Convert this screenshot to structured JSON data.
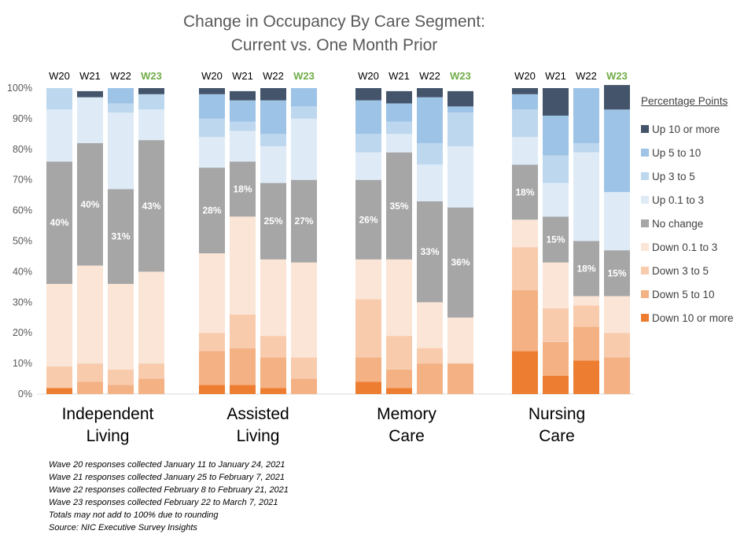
{
  "title": {
    "line1": "Change in Occupancy By Care Segment:",
    "line2": "Current vs. One Month Prior"
  },
  "legend_title": "Percentage Points",
  "notes": [
    "Wave 20 responses collected January 11 to January 24, 2021",
    "Wave 21 responses collected January 25 to February 7, 2021",
    "Wave 22 responses collected February 8 to February 21, 2021",
    "Wave 23 responses collected February 22 to March 7, 2021",
    "Totals may not add to 100% due to rounding",
    "Source: NIC Executive Survey Insights"
  ],
  "colors": {
    "highlight_wave": "#70AD47",
    "segments": [
      "#ED7D31",
      "#F4B183",
      "#F8CBAD",
      "#FBE5D6",
      "#A6A6A6",
      "#DEEBF7",
      "#BDD7EE",
      "#9DC3E6",
      "#44546A"
    ]
  },
  "chart_data": {
    "type": "bar",
    "stacked": true,
    "ylim": [
      0,
      100
    ],
    "yticks": [
      "0%",
      "10%",
      "20%",
      "30%",
      "40%",
      "50%",
      "60%",
      "70%",
      "80%",
      "90%",
      "100%"
    ],
    "waves": [
      "W20",
      "W21",
      "W22",
      "W23"
    ],
    "highlight_wave": "W23",
    "segment_names": [
      "Down 10 or more",
      "Down 5 to 10",
      "Down 3 to 5",
      "Down 0.1 to 3",
      "No change",
      "Up 0.1 to 3",
      "Up 3 to 5",
      "Up 5 to 10",
      "Up 10 or more"
    ],
    "groups": [
      {
        "name": "Independent Living",
        "name_lines": [
          "Independent",
          "Living"
        ],
        "bars": [
          {
            "wave": "W20",
            "values": [
              2,
              0,
              7,
              27,
              40,
              17,
              7,
              0,
              0
            ],
            "label": "40%"
          },
          {
            "wave": "W21",
            "values": [
              0,
              4,
              6,
              32,
              40,
              15,
              0,
              0,
              2
            ],
            "label": "40%"
          },
          {
            "wave": "W22",
            "values": [
              0,
              3,
              5,
              28,
              31,
              25,
              3,
              5,
              0
            ],
            "label": "31%"
          },
          {
            "wave": "W23",
            "values": [
              0,
              5,
              5,
              30,
              43,
              10,
              5,
              0,
              2
            ],
            "label": "43%"
          }
        ]
      },
      {
        "name": "Assisted Living",
        "name_lines": [
          "Assisted",
          "Living"
        ],
        "bars": [
          {
            "wave": "W20",
            "values": [
              3,
              11,
              6,
              26,
              28,
              10,
              6,
              8,
              2
            ],
            "label": "28%"
          },
          {
            "wave": "W21",
            "values": [
              3,
              12,
              11,
              32,
              18,
              10,
              3,
              7,
              3
            ],
            "label": "18%"
          },
          {
            "wave": "W22",
            "values": [
              2,
              10,
              7,
              25,
              25,
              12,
              4,
              11,
              4
            ],
            "label": "25%"
          },
          {
            "wave": "W23",
            "values": [
              0,
              5,
              7,
              31,
              27,
              20,
              4,
              6,
              0
            ],
            "label": "27%"
          }
        ]
      },
      {
        "name": "Memory Care",
        "name_lines": [
          "Memory",
          "Care"
        ],
        "bars": [
          {
            "wave": "W20",
            "values": [
              4,
              8,
              19,
              13,
              26,
              9,
              6,
              11,
              4
            ],
            "label": "26%"
          },
          {
            "wave": "W21",
            "values": [
              2,
              6,
              11,
              25,
              35,
              6,
              4,
              6,
              4
            ],
            "label": "35%"
          },
          {
            "wave": "W22",
            "values": [
              0,
              10,
              5,
              15,
              33,
              12,
              7,
              15,
              3
            ],
            "label": "33%"
          },
          {
            "wave": "W23",
            "values": [
              0,
              10,
              0,
              15,
              36,
              20,
              11,
              2,
              5
            ],
            "label": "36%"
          }
        ]
      },
      {
        "name": "Nursing Care",
        "name_lines": [
          "Nursing",
          "Care"
        ],
        "bars": [
          {
            "wave": "W20",
            "values": [
              14,
              20,
              14,
              9,
              18,
              9,
              9,
              5,
              2
            ],
            "label": "18%"
          },
          {
            "wave": "W21",
            "values": [
              6,
              11,
              11,
              15,
              15,
              11,
              9,
              13,
              9
            ],
            "label": "15%"
          },
          {
            "wave": "W22",
            "values": [
              11,
              11,
              7,
              3,
              18,
              29,
              3,
              18,
              0
            ],
            "label": "18%"
          },
          {
            "wave": "W23",
            "values": [
              0,
              12,
              8,
              12,
              15,
              19,
              0,
              27,
              8
            ],
            "label": "15%"
          }
        ]
      }
    ]
  }
}
